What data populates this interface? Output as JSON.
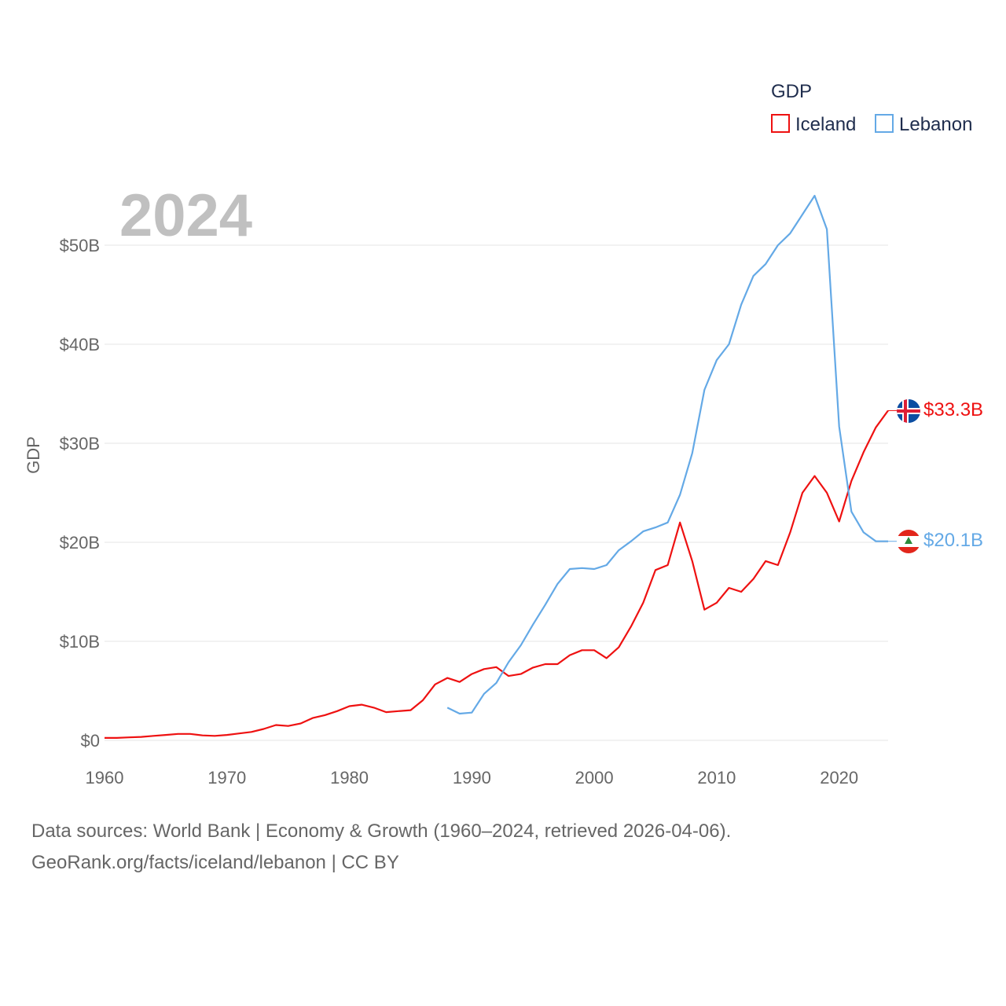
{
  "chart_data": {
    "type": "line",
    "big_year": "2024",
    "legend_title": "GDP",
    "ylabel": "GDP",
    "xlim": [
      1960,
      2024
    ],
    "ylim": [
      0,
      55
    ],
    "x_ticks": [
      1960,
      1970,
      1980,
      1990,
      2000,
      2010,
      2020
    ],
    "x_tick_labels": [
      "1960",
      "1970",
      "1980",
      "1990",
      "2000",
      "2010",
      "2020"
    ],
    "y_ticks": [
      0,
      10,
      20,
      30,
      40,
      50
    ],
    "y_tick_labels": [
      "$0",
      "$10B",
      "$20B",
      "$30B",
      "$40B",
      "$50B"
    ],
    "series": [
      {
        "name": "Iceland",
        "color": "#ee1111",
        "end_label": "$33.3B",
        "flag": "iceland-flag",
        "x": [
          1960,
          1961,
          1962,
          1963,
          1964,
          1965,
          1966,
          1967,
          1968,
          1969,
          1970,
          1971,
          1972,
          1973,
          1974,
          1975,
          1976,
          1977,
          1978,
          1979,
          1980,
          1981,
          1982,
          1983,
          1984,
          1985,
          1986,
          1987,
          1988,
          1989,
          1990,
          1991,
          1992,
          1993,
          1994,
          1995,
          1996,
          1997,
          1998,
          1999,
          2000,
          2001,
          2002,
          2003,
          2004,
          2005,
          2006,
          2007,
          2008,
          2009,
          2010,
          2011,
          2012,
          2013,
          2014,
          2015,
          2016,
          2017,
          2018,
          2019,
          2020,
          2021,
          2022,
          2023,
          2024
        ],
        "values": [
          0.25,
          0.25,
          0.3,
          0.35,
          0.45,
          0.55,
          0.65,
          0.65,
          0.5,
          0.45,
          0.55,
          0.7,
          0.85,
          1.15,
          1.55,
          1.45,
          1.7,
          2.25,
          2.55,
          2.95,
          3.45,
          3.6,
          3.3,
          2.85,
          2.95,
          3.05,
          4.05,
          5.65,
          6.3,
          5.9,
          6.7,
          7.2,
          7.4,
          6.5,
          6.7,
          7.35,
          7.7,
          7.7,
          8.6,
          9.1,
          9.1,
          8.3,
          9.4,
          11.5,
          13.9,
          17.2,
          17.7,
          22.0,
          18.1,
          13.2,
          13.9,
          15.4,
          15.0,
          16.3,
          18.1,
          17.7,
          21.0,
          25.0,
          26.7,
          25.0,
          22.1,
          26.2,
          29.1,
          31.6,
          33.3
        ]
      },
      {
        "name": "Lebanon",
        "color": "#64a9e6",
        "end_label": "$20.1B",
        "flag": "lebanon-flag",
        "x": [
          1988,
          1989,
          1990,
          1991,
          1992,
          1993,
          1994,
          1995,
          1996,
          1997,
          1998,
          1999,
          2000,
          2001,
          2002,
          2003,
          2004,
          2005,
          2006,
          2007,
          2008,
          2009,
          2010,
          2011,
          2012,
          2013,
          2014,
          2015,
          2016,
          2017,
          2018,
          2019,
          2020,
          2021,
          2022,
          2023,
          2024
        ],
        "values": [
          3.3,
          2.7,
          2.8,
          4.7,
          5.8,
          7.9,
          9.6,
          11.7,
          13.7,
          15.8,
          17.3,
          17.4,
          17.3,
          17.7,
          19.2,
          20.1,
          21.1,
          21.5,
          22.0,
          24.8,
          29.0,
          35.4,
          38.4,
          40.0,
          44.0,
          46.9,
          48.1,
          50.0,
          51.2,
          53.1,
          55.0,
          51.6,
          31.7,
          23.1,
          21.0,
          20.1,
          20.1
        ]
      }
    ]
  },
  "footer": {
    "line1": "Data sources: World Bank | Economy & Growth (1960–2024, retrieved 2026-04-06).",
    "line2": "GeoRank.org/facts/iceland/lebanon | CC BY"
  }
}
